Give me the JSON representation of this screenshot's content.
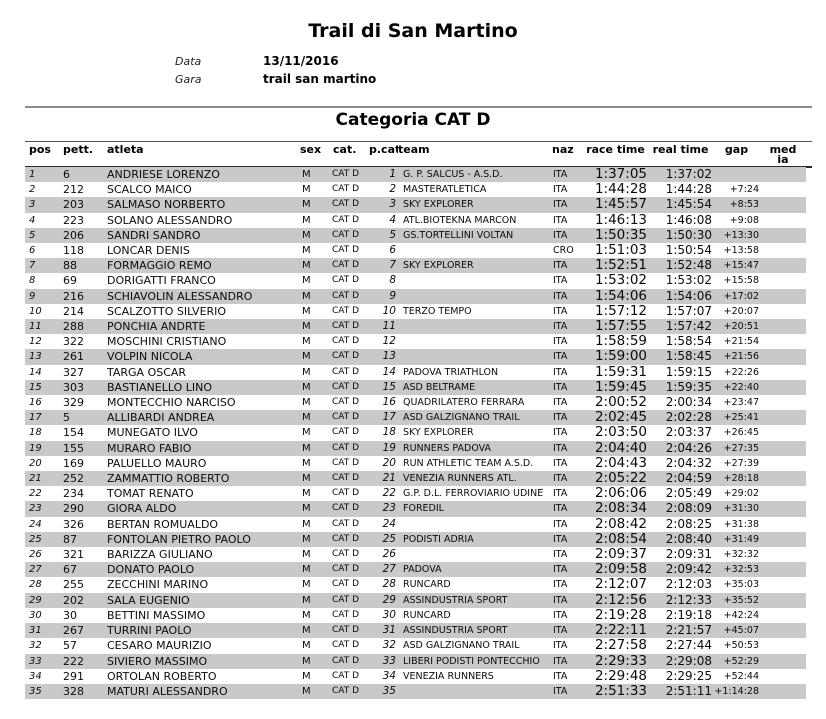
{
  "header": {
    "title": "Trail di San Martino",
    "meta": [
      {
        "label": "Data",
        "value": "13/11/2016"
      },
      {
        "label": "Gara",
        "value": "trail san martino"
      }
    ]
  },
  "category": {
    "title": "Categoria CAT D"
  },
  "table": {
    "columns": [
      {
        "key": "pos",
        "label": "pos"
      },
      {
        "key": "pett",
        "label": "pett."
      },
      {
        "key": "atleta",
        "label": "atleta"
      },
      {
        "key": "sex",
        "label": "sex"
      },
      {
        "key": "cat",
        "label": "cat."
      },
      {
        "key": "pcat",
        "label": "p.cat"
      },
      {
        "key": "team",
        "label": "team"
      },
      {
        "key": "naz",
        "label": "naz"
      },
      {
        "key": "race",
        "label": "race time"
      },
      {
        "key": "real",
        "label": "real time"
      },
      {
        "key": "gap",
        "label": "gap"
      },
      {
        "key": "media",
        "label": "media"
      }
    ],
    "rows": [
      {
        "pos": "1",
        "pett": "6",
        "atleta": "ANDRIESE LORENZO",
        "sex": "M",
        "cat": "CAT D",
        "pcat": "1",
        "team": "G. P. SALCUS - A.S.D.",
        "naz": "ITA",
        "race": "1:37:05",
        "real": "1:37:02",
        "gap": "",
        "media": ""
      },
      {
        "pos": "2",
        "pett": "212",
        "atleta": "SCALCO MAICO",
        "sex": "M",
        "cat": "CAT D",
        "pcat": "2",
        "team": "MASTERATLETICA",
        "naz": "ITA",
        "race": "1:44:28",
        "real": "1:44:28",
        "gap": "+7:24",
        "media": ""
      },
      {
        "pos": "3",
        "pett": "203",
        "atleta": "SALMASO NORBERTO",
        "sex": "M",
        "cat": "CAT D",
        "pcat": "3",
        "team": "SKY EXPLORER",
        "naz": "ITA",
        "race": "1:45:57",
        "real": "1:45:54",
        "gap": "+8:53",
        "media": ""
      },
      {
        "pos": "4",
        "pett": "223",
        "atleta": "SOLANO ALESSANDRO",
        "sex": "M",
        "cat": "CAT D",
        "pcat": "4",
        "team": "ATL.BIOTEKNA MARCON",
        "naz": "ITA",
        "race": "1:46:13",
        "real": "1:46:08",
        "gap": "+9:08",
        "media": ""
      },
      {
        "pos": "5",
        "pett": "206",
        "atleta": "SANDRI SANDRO",
        "sex": "M",
        "cat": "CAT D",
        "pcat": "5",
        "team": "GS.TORTELLINI VOLTAN",
        "naz": "ITA",
        "race": "1:50:35",
        "real": "1:50:30",
        "gap": "+13:30",
        "media": ""
      },
      {
        "pos": "6",
        "pett": "118",
        "atleta": "LONCAR DENIS",
        "sex": "M",
        "cat": "CAT D",
        "pcat": "6",
        "team": "",
        "naz": "CRO",
        "race": "1:51:03",
        "real": "1:50:54",
        "gap": "+13:58",
        "media": ""
      },
      {
        "pos": "7",
        "pett": "88",
        "atleta": "FORMAGGIO REMO",
        "sex": "M",
        "cat": "CAT D",
        "pcat": "7",
        "team": "SKY EXPLORER",
        "naz": "ITA",
        "race": "1:52:51",
        "real": "1:52:48",
        "gap": "+15:47",
        "media": ""
      },
      {
        "pos": "8",
        "pett": "69",
        "atleta": "DORIGATTI FRANCO",
        "sex": "M",
        "cat": "CAT D",
        "pcat": "8",
        "team": "",
        "naz": "ITA",
        "race": "1:53:02",
        "real": "1:53:02",
        "gap": "+15:58",
        "media": ""
      },
      {
        "pos": "9",
        "pett": "216",
        "atleta": "SCHIAVOLIN ALESSANDRO",
        "sex": "M",
        "cat": "CAT D",
        "pcat": "9",
        "team": "",
        "naz": "ITA",
        "race": "1:54:06",
        "real": "1:54:06",
        "gap": "+17:02",
        "media": ""
      },
      {
        "pos": "10",
        "pett": "214",
        "atleta": "SCALZOTTO SILVERIO",
        "sex": "M",
        "cat": "CAT D",
        "pcat": "10",
        "team": "TERZO TEMPO",
        "naz": "ITA",
        "race": "1:57:12",
        "real": "1:57:07",
        "gap": "+20:07",
        "media": ""
      },
      {
        "pos": "11",
        "pett": "288",
        "atleta": "PONCHIA ANDRTE",
        "sex": "M",
        "cat": "CAT D",
        "pcat": "11",
        "team": "",
        "naz": "ITA",
        "race": "1:57:55",
        "real": "1:57:42",
        "gap": "+20:51",
        "media": ""
      },
      {
        "pos": "12",
        "pett": "322",
        "atleta": "MOSCHINI CRISTIANO",
        "sex": "M",
        "cat": "CAT D",
        "pcat": "12",
        "team": "",
        "naz": "ITA",
        "race": "1:58:59",
        "real": "1:58:54",
        "gap": "+21:54",
        "media": ""
      },
      {
        "pos": "13",
        "pett": "261",
        "atleta": "VOLPIN NICOLA",
        "sex": "M",
        "cat": "CAT D",
        "pcat": "13",
        "team": "",
        "naz": "ITA",
        "race": "1:59:00",
        "real": "1:58:45",
        "gap": "+21:56",
        "media": ""
      },
      {
        "pos": "14",
        "pett": "327",
        "atleta": "TARGA OSCAR",
        "sex": "M",
        "cat": "CAT D",
        "pcat": "14",
        "team": "PADOVA TRIATHLON",
        "naz": "ITA",
        "race": "1:59:31",
        "real": "1:59:15",
        "gap": "+22:26",
        "media": ""
      },
      {
        "pos": "15",
        "pett": "303",
        "atleta": "BASTIANELLO LINO",
        "sex": "M",
        "cat": "CAT D",
        "pcat": "15",
        "team": "ASD BELTRAME",
        "naz": "ITA",
        "race": "1:59:45",
        "real": "1:59:35",
        "gap": "+22:40",
        "media": ""
      },
      {
        "pos": "16",
        "pett": "329",
        "atleta": "MONTECCHIO NARCISO",
        "sex": "M",
        "cat": "CAT D",
        "pcat": "16",
        "team": "QUADRILATERO FERRARA",
        "naz": "ITA",
        "race": "2:00:52",
        "real": "2:00:34",
        "gap": "+23:47",
        "media": ""
      },
      {
        "pos": "17",
        "pett": "5",
        "atleta": "ALLIBARDI ANDREA",
        "sex": "M",
        "cat": "CAT D",
        "pcat": "17",
        "team": "ASD GALZIGNANO TRAIL",
        "naz": "ITA",
        "race": "2:02:45",
        "real": "2:02:28",
        "gap": "+25:41",
        "media": ""
      },
      {
        "pos": "18",
        "pett": "154",
        "atleta": "MUNEGATO ILVO",
        "sex": "M",
        "cat": "CAT D",
        "pcat": "18",
        "team": "SKY EXPLORER",
        "naz": "ITA",
        "race": "2:03:50",
        "real": "2:03:37",
        "gap": "+26:45",
        "media": ""
      },
      {
        "pos": "19",
        "pett": "155",
        "atleta": "MURARO FABIO",
        "sex": "M",
        "cat": "CAT D",
        "pcat": "19",
        "team": "RUNNERS PADOVA",
        "naz": "ITA",
        "race": "2:04:40",
        "real": "2:04:26",
        "gap": "+27:35",
        "media": ""
      },
      {
        "pos": "20",
        "pett": "169",
        "atleta": "PALUELLO MAURO",
        "sex": "M",
        "cat": "CAT D",
        "pcat": "20",
        "team": "RUN ATHLETIC TEAM A.S.D.",
        "naz": "ITA",
        "race": "2:04:43",
        "real": "2:04:32",
        "gap": "+27:39",
        "media": ""
      },
      {
        "pos": "21",
        "pett": "252",
        "atleta": "ZAMMATTIO ROBERTO",
        "sex": "M",
        "cat": "CAT D",
        "pcat": "21",
        "team": "VENEZIA RUNNERS ATL.",
        "naz": "ITA",
        "race": "2:05:22",
        "real": "2:04:59",
        "gap": "+28:18",
        "media": ""
      },
      {
        "pos": "22",
        "pett": "234",
        "atleta": "TOMAT RENATO",
        "sex": "M",
        "cat": "CAT D",
        "pcat": "22",
        "team": "G.P. D.L. FERROVIARIO UDINE",
        "naz": "ITA",
        "race": "2:06:06",
        "real": "2:05:49",
        "gap": "+29:02",
        "media": ""
      },
      {
        "pos": "23",
        "pett": "290",
        "atleta": "GIORA ALDO",
        "sex": "M",
        "cat": "CAT D",
        "pcat": "23",
        "team": "FOREDIL",
        "naz": "ITA",
        "race": "2:08:34",
        "real": "2:08:09",
        "gap": "+31:30",
        "media": ""
      },
      {
        "pos": "24",
        "pett": "326",
        "atleta": "BERTAN ROMUALDO",
        "sex": "M",
        "cat": "CAT D",
        "pcat": "24",
        "team": "",
        "naz": "ITA",
        "race": "2:08:42",
        "real": "2:08:25",
        "gap": "+31:38",
        "media": ""
      },
      {
        "pos": "25",
        "pett": "87",
        "atleta": "FONTOLAN PIETRO PAOLO",
        "sex": "M",
        "cat": "CAT D",
        "pcat": "25",
        "team": "PODISTI ADRIA",
        "naz": "ITA",
        "race": "2:08:54",
        "real": "2:08:40",
        "gap": "+31:49",
        "media": ""
      },
      {
        "pos": "26",
        "pett": "321",
        "atleta": "BARIZZA GIULIANO",
        "sex": "M",
        "cat": "CAT D",
        "pcat": "26",
        "team": "",
        "naz": "ITA",
        "race": "2:09:37",
        "real": "2:09:31",
        "gap": "+32:32",
        "media": ""
      },
      {
        "pos": "27",
        "pett": "67",
        "atleta": "DONATO PAOLO",
        "sex": "M",
        "cat": "CAT D",
        "pcat": "27",
        "team": "PADOVA",
        "naz": "ITA",
        "race": "2:09:58",
        "real": "2:09:42",
        "gap": "+32:53",
        "media": ""
      },
      {
        "pos": "28",
        "pett": "255",
        "atleta": "ZECCHINI MARINO",
        "sex": "M",
        "cat": "CAT D",
        "pcat": "28",
        "team": "RUNCARD",
        "naz": "ITA",
        "race": "2:12:07",
        "real": "2:12:03",
        "gap": "+35:03",
        "media": ""
      },
      {
        "pos": "29",
        "pett": "202",
        "atleta": "SALA EUGENIO",
        "sex": "M",
        "cat": "CAT D",
        "pcat": "29",
        "team": "ASSINDUSTRIA SPORT",
        "naz": "ITA",
        "race": "2:12:56",
        "real": "2:12:33",
        "gap": "+35:52",
        "media": ""
      },
      {
        "pos": "30",
        "pett": "30",
        "atleta": "BETTINI MASSIMO",
        "sex": "M",
        "cat": "CAT D",
        "pcat": "30",
        "team": "RUNCARD",
        "naz": "ITA",
        "race": "2:19:28",
        "real": "2:19:18",
        "gap": "+42:24",
        "media": ""
      },
      {
        "pos": "31",
        "pett": "267",
        "atleta": "TURRINI PAOLO",
        "sex": "M",
        "cat": "CAT D",
        "pcat": "31",
        "team": "ASSINDUSTRIA SPORT",
        "naz": "ITA",
        "race": "2:22:11",
        "real": "2:21:57",
        "gap": "+45:07",
        "media": ""
      },
      {
        "pos": "32",
        "pett": "57",
        "atleta": "CESARO MAURIZIO",
        "sex": "M",
        "cat": "CAT D",
        "pcat": "32",
        "team": "ASD GALZIGNANO TRAIL",
        "naz": "ITA",
        "race": "2:27:58",
        "real": "2:27:44",
        "gap": "+50:53",
        "media": ""
      },
      {
        "pos": "33",
        "pett": "222",
        "atleta": "SIVIERO MASSIMO",
        "sex": "M",
        "cat": "CAT D",
        "pcat": "33",
        "team": "LIBERI PODISTI PONTECCHIO",
        "naz": "ITA",
        "race": "2:29:33",
        "real": "2:29:08",
        "gap": "+52:29",
        "media": ""
      },
      {
        "pos": "34",
        "pett": "291",
        "atleta": "ORTOLAN ROBERTO",
        "sex": "M",
        "cat": "CAT D",
        "pcat": "34",
        "team": "VENEZIA RUNNERS",
        "naz": "ITA",
        "race": "2:29:48",
        "real": "2:29:25",
        "gap": "+52:44",
        "media": ""
      },
      {
        "pos": "35",
        "pett": "328",
        "atleta": "MATURI ALESSANDRO",
        "sex": "M",
        "cat": "CAT D",
        "pcat": "35",
        "team": "",
        "naz": "ITA",
        "race": "2:51:33",
        "real": "2:51:11",
        "gap": "+1:14:28",
        "media": ""
      }
    ]
  }
}
